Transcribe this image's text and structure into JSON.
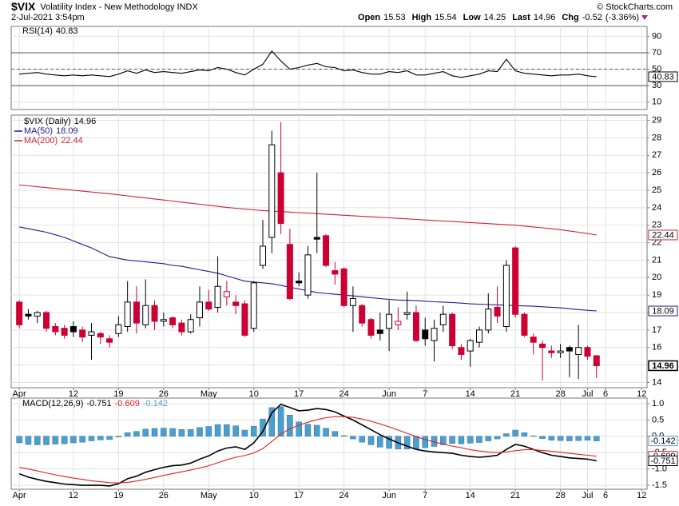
{
  "header": {
    "symbol": "$VIX",
    "name": "Volatility Index - New Methodology INDX",
    "date": "2-Jul-2021 3:54pm",
    "credit": "© StockCharts.com",
    "quote": [
      {
        "label": "Open",
        "value": 15.53
      },
      {
        "label": "High",
        "value": 15.54
      },
      {
        "label": "Low",
        "value": 14.25
      },
      {
        "label": "Last",
        "value": 14.96
      },
      {
        "label": "Chg",
        "value": -0.52
      }
    ],
    "chg_pct": "(-3.36%)"
  },
  "chart_data": [
    {
      "type": "rsi",
      "series": [
        {
          "name": "RSI(14)",
          "color": "#000000",
          "values": [
            44,
            45,
            46,
            44,
            43,
            42,
            43,
            42,
            43,
            42,
            41,
            44,
            48,
            45,
            49,
            46,
            47,
            46,
            45,
            47,
            49,
            48,
            52,
            50,
            46,
            43,
            50,
            56,
            72,
            60,
            50,
            52,
            55,
            57,
            53,
            52,
            48,
            49,
            46,
            44,
            44,
            47,
            46,
            48,
            43,
            43,
            45,
            47,
            42,
            40,
            42,
            44,
            48,
            47,
            62,
            48,
            45,
            44,
            43,
            42,
            43,
            43,
            44,
            42,
            40.83
          ]
        }
      ],
      "levels": [
        70,
        50,
        30
      ],
      "ylim": [
        1,
        102
      ],
      "yticks": [
        10,
        30,
        50,
        70,
        90
      ],
      "grid": true
    },
    {
      "type": "candlestick",
      "title": "$VIX (Daily)",
      "open": [
        18.6,
        17.9,
        17.8,
        18.0,
        17.2,
        17.1,
        17.2,
        17.0,
        16.7,
        16.8,
        16.5,
        16.8,
        17.2,
        18.6,
        17.3,
        18.4,
        17.5,
        17.7,
        17.4,
        16.9,
        17.7,
        18.6,
        18.3,
        18.9,
        18.6,
        18.5,
        17.1,
        20.7,
        22.3,
        26.0,
        21.9,
        19.8,
        19.0,
        22.3,
        22.4,
        20.4,
        20.5,
        18.4,
        18.4,
        17.6,
        17.0,
        17.1,
        17.3,
        17.9,
        18.0,
        17.0,
        16.4,
        17.3,
        17.9,
        16.0,
        15.8,
        16.3,
        17.0,
        18.3,
        17.2,
        21.7,
        17.9,
        16.6,
        16.2,
        15.8,
        15.7,
        16.0,
        15.6,
        16.0,
        15.53
      ],
      "high": [
        18.7,
        18.2,
        18.1,
        18.1,
        17.4,
        17.3,
        17.5,
        17.2,
        17.4,
        16.9,
        16.7,
        17.8,
        19.8,
        19.5,
        19.9,
        18.7,
        18.0,
        17.8,
        17.6,
        17.9,
        19.5,
        19.3,
        21.2,
        19.8,
        19.0,
        18.7,
        19.8,
        23.3,
        28.4,
        28.9,
        22.8,
        20.3,
        21.8,
        26.0,
        22.5,
        20.9,
        20.6,
        19.5,
        18.5,
        17.7,
        18.0,
        18.7,
        18.3,
        19.2,
        18.4,
        17.7,
        17.6,
        18.4,
        18.0,
        16.2,
        16.5,
        17.2,
        19.1,
        19.5,
        21.0,
        21.8,
        18.0,
        16.8,
        16.4,
        16.1,
        16.2,
        16.1,
        17.3,
        16.1,
        15.54
      ],
      "low": [
        17.1,
        17.6,
        17.4,
        16.9,
        16.7,
        16.5,
        16.6,
        16.3,
        15.3,
        16.2,
        16.0,
        16.6,
        16.9,
        16.8,
        17.1,
        17.0,
        17.2,
        17.1,
        16.7,
        16.8,
        17.2,
        18.1,
        18.0,
        18.4,
        17.9,
        16.6,
        16.9,
        20.5,
        21.4,
        22.5,
        18.7,
        19.5,
        18.8,
        21.4,
        20.6,
        19.6,
        18.3,
        16.9,
        17.2,
        16.5,
        16.4,
        15.8,
        17.0,
        17.6,
        16.3,
        16.1,
        15.2,
        16.9,
        15.9,
        15.3,
        14.9,
        16.0,
        16.8,
        17.4,
        16.9,
        17.7,
        16.6,
        15.6,
        14.1,
        15.4,
        15.4,
        14.3,
        14.2,
        15.3,
        14.25
      ],
      "close": [
        17.3,
        17.8,
        18.0,
        17.1,
        16.9,
        16.7,
        16.9,
        16.6,
        16.9,
        16.6,
        16.3,
        17.3,
        18.6,
        17.4,
        18.4,
        17.5,
        17.6,
        17.3,
        16.9,
        17.6,
        18.6,
        18.2,
        19.5,
        19.2,
        18.4,
        16.7,
        19.7,
        21.8,
        27.6,
        23.1,
        18.8,
        19.7,
        21.3,
        22.2,
        20.7,
        20.2,
        18.4,
        18.8,
        17.4,
        16.7,
        16.8,
        17.9,
        17.5,
        18.0,
        16.4,
        16.5,
        17.1,
        17.9,
        16.1,
        15.6,
        16.4,
        17.0,
        18.2,
        17.8,
        20.7,
        17.9,
        16.7,
        16.3,
        16.0,
        15.7,
        15.8,
        15.8,
        16.0,
        15.5,
        14.96
      ],
      "up_color": "#000000",
      "down_color": "#cc0033",
      "series": [
        {
          "name": "MA(50)",
          "color": "#1c1c8c",
          "values": [
            22.9,
            22.8,
            22.7,
            22.6,
            22.45,
            22.3,
            22.1,
            21.9,
            21.7,
            21.45,
            21.2,
            21.1,
            21.0,
            20.95,
            20.9,
            20.85,
            20.8,
            20.7,
            20.65,
            20.55,
            20.45,
            20.35,
            20.25,
            20.1,
            19.95,
            19.8,
            19.75,
            19.7,
            19.65,
            19.55,
            19.45,
            19.35,
            19.25,
            19.15,
            19.1,
            19.05,
            19.0,
            18.95,
            18.9,
            18.85,
            18.8,
            18.75,
            18.72,
            18.7,
            18.68,
            18.65,
            18.62,
            18.6,
            18.57,
            18.54,
            18.5,
            18.48,
            18.46,
            18.44,
            18.42,
            18.4,
            18.38,
            18.36,
            18.33,
            18.3,
            18.27,
            18.22,
            18.17,
            18.13,
            18.09
          ]
        },
        {
          "name": "MA(200)",
          "color": "#cc2233",
          "values": [
            25.3,
            25.25,
            25.2,
            25.15,
            25.1,
            25.05,
            25.0,
            24.95,
            24.9,
            24.85,
            24.8,
            24.74,
            24.68,
            24.62,
            24.56,
            24.5,
            24.44,
            24.38,
            24.32,
            24.26,
            24.2,
            24.14,
            24.08,
            24.02,
            23.97,
            23.92,
            23.88,
            23.84,
            23.8,
            23.78,
            23.75,
            23.72,
            23.69,
            23.66,
            23.63,
            23.6,
            23.57,
            23.54,
            23.51,
            23.48,
            23.45,
            23.42,
            23.39,
            23.36,
            23.33,
            23.3,
            23.27,
            23.24,
            23.21,
            23.18,
            23.15,
            23.12,
            23.09,
            23.06,
            23.03,
            23.0,
            22.95,
            22.9,
            22.85,
            22.8,
            22.74,
            22.67,
            22.6,
            22.52,
            22.44
          ]
        }
      ],
      "xlim": [
        -0.9,
        69.6
      ],
      "xticks": [
        {
          "value": 0,
          "label": "Apr"
        },
        {
          "value": 6,
          "label": "12"
        },
        {
          "value": 11,
          "label": "19"
        },
        {
          "value": 16,
          "label": "26"
        },
        {
          "value": 21,
          "label": "May"
        },
        {
          "value": 26,
          "label": "10"
        },
        {
          "value": 31,
          "label": "17"
        },
        {
          "value": 36,
          "label": "24"
        },
        {
          "value": 41,
          "label": "Jun"
        },
        {
          "value": 45,
          "label": "7"
        },
        {
          "value": 50,
          "label": "14"
        },
        {
          "value": 55,
          "label": "21"
        },
        {
          "value": 60,
          "label": "28"
        },
        {
          "value": 63,
          "label": "Jul"
        },
        {
          "value": 65,
          "label": "6"
        },
        {
          "value": 69,
          "label": "12"
        }
      ],
      "ylim": [
        13.7,
        29.3
      ],
      "yticks": [
        14,
        15,
        16,
        17,
        18,
        19,
        20,
        21,
        22,
        23,
        24,
        25,
        26,
        27,
        28,
        29
      ],
      "grid": true
    },
    {
      "type": "macd",
      "legend": "MACD(12,26,9)",
      "series": [
        {
          "color": "#000000",
          "values": [
            -1.15,
            -1.25,
            -1.32,
            -1.38,
            -1.42,
            -1.46,
            -1.48,
            -1.5,
            -1.5,
            -1.5,
            -1.52,
            -1.45,
            -1.3,
            -1.22,
            -1.1,
            -1.02,
            -0.95,
            -0.9,
            -0.88,
            -0.82,
            -0.7,
            -0.6,
            -0.45,
            -0.36,
            -0.32,
            -0.4,
            -0.2,
            0.15,
            0.72,
            0.98,
            0.88,
            0.78,
            0.8,
            0.85,
            0.82,
            0.75,
            0.62,
            0.5,
            0.35,
            0.2,
            0.05,
            -0.08,
            -0.2,
            -0.3,
            -0.4,
            -0.45,
            -0.48,
            -0.5,
            -0.52,
            -0.58,
            -0.62,
            -0.64,
            -0.62,
            -0.58,
            -0.4,
            -0.25,
            -0.3,
            -0.4,
            -0.5,
            -0.58,
            -0.62,
            -0.66,
            -0.68,
            -0.7,
            -0.751
          ]
        },
        {
          "color": "#dd2222",
          "values": [
            -0.95,
            -1.0,
            -1.06,
            -1.12,
            -1.18,
            -1.23,
            -1.28,
            -1.32,
            -1.36,
            -1.39,
            -1.42,
            -1.43,
            -1.41,
            -1.37,
            -1.32,
            -1.26,
            -1.2,
            -1.14,
            -1.09,
            -1.03,
            -0.97,
            -0.9,
            -0.81,
            -0.72,
            -0.64,
            -0.59,
            -0.51,
            -0.38,
            -0.16,
            0.07,
            0.23,
            0.34,
            0.43,
            0.51,
            0.57,
            0.6,
            0.6,
            0.58,
            0.53,
            0.46,
            0.38,
            0.29,
            0.19,
            0.09,
            -0.01,
            -0.1,
            -0.17,
            -0.24,
            -0.3,
            -0.35,
            -0.41,
            -0.45,
            -0.48,
            -0.5,
            -0.48,
            -0.44,
            -0.41,
            -0.41,
            -0.43,
            -0.46,
            -0.49,
            -0.52,
            -0.55,
            -0.58,
            -0.609
          ]
        },
        {
          "color": "#4b9fcf",
          "kind": "bar",
          "values": [
            -0.2,
            -0.25,
            -0.26,
            -0.26,
            -0.24,
            -0.23,
            -0.2,
            -0.18,
            -0.14,
            -0.11,
            -0.1,
            -0.02,
            0.11,
            0.15,
            0.22,
            0.24,
            0.25,
            0.24,
            0.21,
            0.21,
            0.27,
            0.3,
            0.36,
            0.36,
            0.32,
            0.19,
            0.31,
            0.53,
            0.88,
            0.91,
            0.65,
            0.44,
            0.37,
            0.34,
            0.25,
            0.15,
            0.02,
            -0.08,
            -0.18,
            -0.26,
            -0.33,
            -0.37,
            -0.39,
            -0.39,
            -0.39,
            -0.35,
            -0.31,
            -0.26,
            -0.22,
            -0.23,
            -0.21,
            -0.19,
            -0.14,
            -0.08,
            0.08,
            0.19,
            0.11,
            0.01,
            -0.07,
            -0.12,
            -0.13,
            -0.14,
            -0.13,
            -0.12,
            -0.142
          ]
        }
      ],
      "xlim": [
        -0.9,
        69.6
      ],
      "xticks": [
        {
          "value": 0,
          "label": "Apr"
        },
        {
          "value": 6,
          "label": "12"
        },
        {
          "value": 11,
          "label": "19"
        },
        {
          "value": 16,
          "label": "26"
        },
        {
          "value": 21,
          "label": "May"
        },
        {
          "value": 26,
          "label": "10"
        },
        {
          "value": 31,
          "label": "17"
        },
        {
          "value": 36,
          "label": "24"
        },
        {
          "value": 41,
          "label": "Jun"
        },
        {
          "value": 45,
          "label": "7"
        },
        {
          "value": 50,
          "label": "14"
        },
        {
          "value": 55,
          "label": "21"
        },
        {
          "value": 60,
          "label": "28"
        },
        {
          "value": 63,
          "label": "Jul"
        },
        {
          "value": 65,
          "label": "6"
        },
        {
          "value": 69,
          "label": "12"
        }
      ],
      "ylim": [
        -1.62,
        1.17
      ],
      "yticks": [
        -1.5,
        {
          "value": -1,
          "label": "-1.0"
        },
        -0.5,
        {
          "value": 0,
          "label": "0.0"
        },
        0.5,
        {
          "value": 1,
          "label": "1.0"
        }
      ],
      "grid": true
    }
  ]
}
